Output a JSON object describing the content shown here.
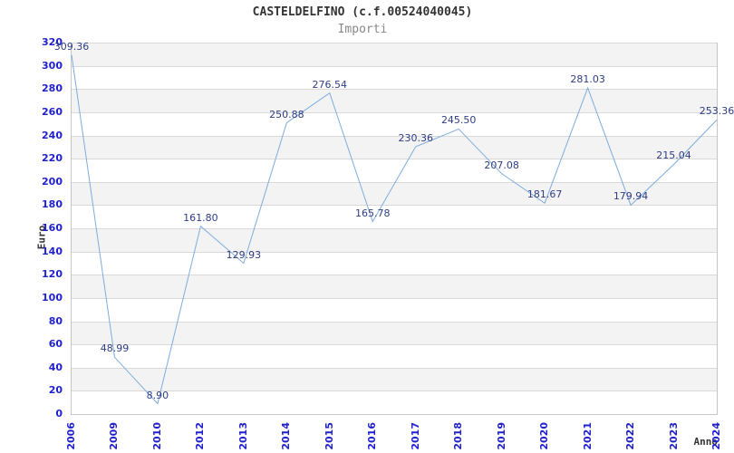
{
  "chart_data": {
    "type": "line",
    "title": "CASTELDELFINO (c.f.00524040045)",
    "subtitle": "Importi",
    "xlabel": "Anno",
    "ylabel": "Euro",
    "categories": [
      "2006",
      "2009",
      "2010",
      "2012",
      "2013",
      "2014",
      "2015",
      "2016",
      "2017",
      "2018",
      "2019",
      "2020",
      "2021",
      "2022",
      "2023",
      "2024"
    ],
    "values": [
      309.36,
      48.99,
      8.9,
      161.8,
      129.93,
      250.88,
      276.54,
      165.78,
      230.36,
      245.5,
      207.08,
      181.67,
      281.03,
      179.94,
      215.04,
      253.36
    ],
    "labels": [
      "309.36",
      "48.99",
      "8.90",
      "161.80",
      "129.93",
      "250.88",
      "276.54",
      "165.78",
      "230.36",
      "245.50",
      "207.08",
      "181.67",
      "281.03",
      "179.94",
      "215.04",
      "253.36"
    ],
    "ylim": [
      0,
      320
    ],
    "y_ticks": [
      0,
      20,
      40,
      60,
      80,
      100,
      120,
      140,
      160,
      180,
      200,
      220,
      240,
      260,
      280,
      300,
      320
    ],
    "grid": "horizontal-bands-alternating",
    "legend": "none",
    "colors": {
      "line": "#7dacdf",
      "tick_label": "#2121cc",
      "data_label": "#2e3d85",
      "title": "#333333",
      "subtitle": "#888888",
      "axis_name": "#333333",
      "band": "#f3f3f3",
      "gridline": "#d9d9d9",
      "axis_line": "#c6c6c6",
      "background": "#ffffff"
    }
  }
}
